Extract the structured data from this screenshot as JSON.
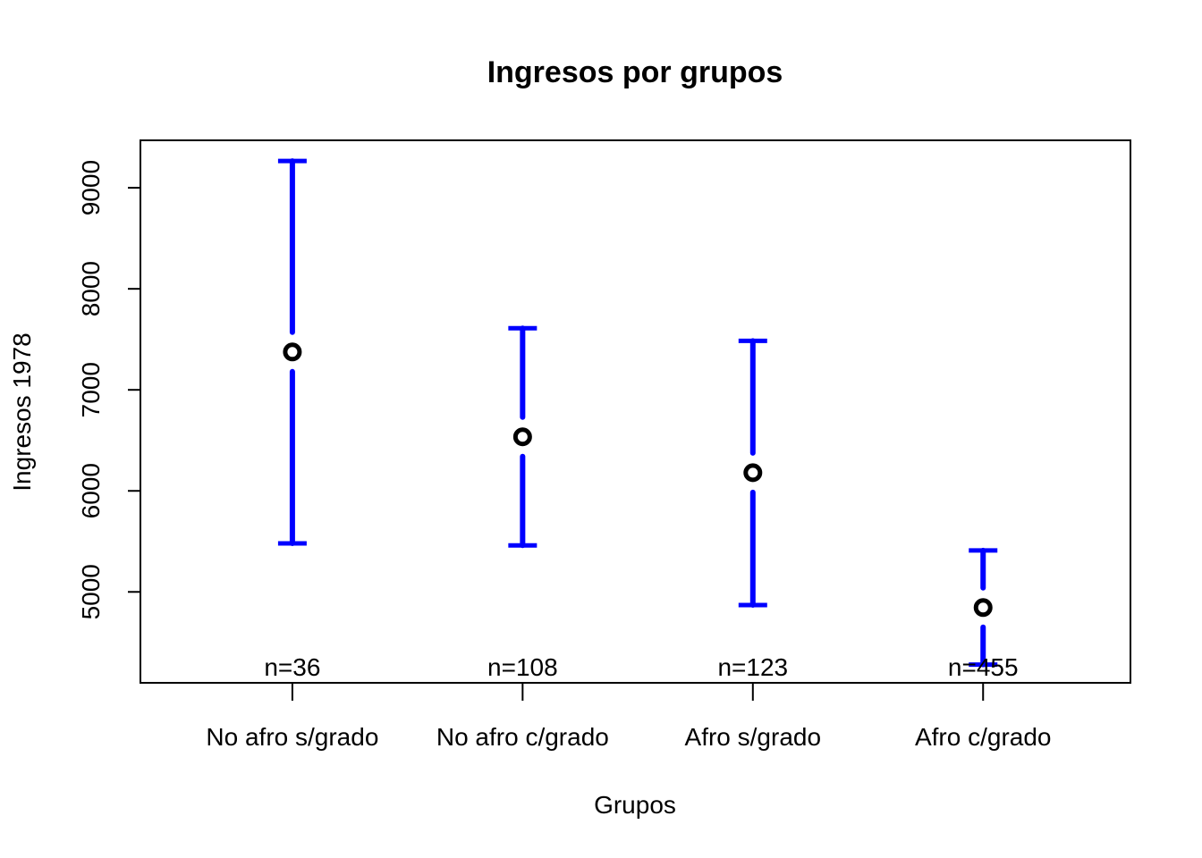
{
  "chart_data": {
    "type": "errorbar",
    "title": "Ingresos por grupos",
    "xlabel": "Grupos",
    "ylabel": "Ingresos 1978",
    "categories": [
      "No afro s/grado",
      "No afro c/grado",
      "Afro s/grado",
      "Afro c/grado"
    ],
    "means": [
      7375,
      6535,
      6180,
      4845
    ],
    "lower": [
      5480,
      5460,
      4870,
      4280
    ],
    "upper": [
      9265,
      7610,
      7485,
      5410
    ],
    "n_labels": [
      "n=36",
      "n=108",
      "n=123",
      "n=455"
    ],
    "yticks": [
      5000,
      6000,
      7000,
      8000,
      9000
    ],
    "ylim": [
      4100,
      9470
    ],
    "errorbar_color": "#0000ff",
    "point_color": "#000000",
    "grid": false,
    "legend": "none"
  }
}
